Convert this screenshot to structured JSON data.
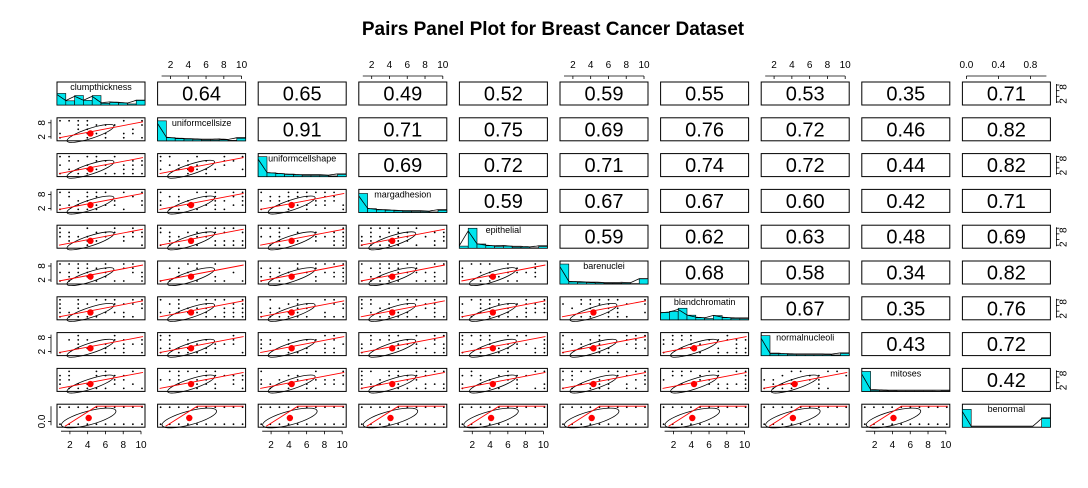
{
  "chart_data": {
    "type": "pairs",
    "title": "Pairs Panel Plot for Breast Cancer Dataset",
    "variables": [
      "clumpthickness",
      "uniformcellsize",
      "uniformcellshape",
      "margadhesion",
      "epithelial",
      "barenuclei",
      "blandchromatin",
      "normalnucleoli",
      "mitoses",
      "benormal"
    ],
    "correlations": [
      [
        null,
        0.64,
        0.65,
        0.49,
        0.52,
        0.59,
        0.55,
        0.53,
        0.35,
        0.71
      ],
      [
        null,
        null,
        0.91,
        0.71,
        0.75,
        0.69,
        0.76,
        0.72,
        0.46,
        0.82
      ],
      [
        null,
        null,
        null,
        0.69,
        0.72,
        0.71,
        0.74,
        0.72,
        0.44,
        0.82
      ],
      [
        null,
        null,
        null,
        null,
        0.59,
        0.67,
        0.67,
        0.6,
        0.42,
        0.71
      ],
      [
        null,
        null,
        null,
        null,
        null,
        0.59,
        0.62,
        0.63,
        0.48,
        0.69
      ],
      [
        null,
        null,
        null,
        null,
        null,
        null,
        0.68,
        0.58,
        0.34,
        0.82
      ],
      [
        null,
        null,
        null,
        null,
        null,
        null,
        null,
        0.67,
        0.35,
        0.76
      ],
      [
        null,
        null,
        null,
        null,
        null,
        null,
        null,
        null,
        0.43,
        0.72
      ],
      [
        null,
        null,
        null,
        null,
        null,
        null,
        null,
        null,
        null,
        0.42
      ],
      [
        null,
        null,
        null,
        null,
        null,
        null,
        null,
        null,
        null,
        null
      ]
    ],
    "correlation_labels": [
      [
        null,
        "0.64",
        "0.65",
        "0.49",
        "0.52",
        "0.59",
        "0.55",
        "0.53",
        "0.35",
        "0.71"
      ],
      [
        null,
        null,
        "0.91",
        "0.71",
        "0.75",
        "0.69",
        "0.76",
        "0.72",
        "0.46",
        "0.82"
      ],
      [
        null,
        null,
        null,
        "0.69",
        "0.72",
        "0.71",
        "0.74",
        "0.72",
        "0.44",
        "0.82"
      ],
      [
        null,
        null,
        null,
        null,
        "0.59",
        "0.67",
        "0.67",
        "0.60",
        "0.42",
        "0.71"
      ],
      [
        null,
        null,
        null,
        null,
        null,
        "0.59",
        "0.62",
        "0.63",
        "0.48",
        "0.69"
      ],
      [
        null,
        null,
        null,
        null,
        null,
        null,
        "0.68",
        "0.58",
        "0.34",
        "0.82"
      ],
      [
        null,
        null,
        null,
        null,
        null,
        null,
        null,
        "0.67",
        "0.35",
        "0.76"
      ],
      [
        null,
        null,
        null,
        null,
        null,
        null,
        null,
        null,
        "0.43",
        "0.72"
      ],
      [
        null,
        null,
        null,
        null,
        null,
        null,
        null,
        null,
        null,
        "0.42"
      ],
      [
        null,
        null,
        null,
        null,
        null,
        null,
        null,
        null,
        null,
        null
      ]
    ],
    "histograms": [
      [
        0.55,
        0.2,
        0.45,
        0.22,
        0.45,
        0.08,
        0.12,
        0.1,
        0.05,
        0.22
      ],
      [
        0.95,
        0.15,
        0.1,
        0.08,
        0.06,
        0.04,
        0.04,
        0.05,
        0.02,
        0.12
      ],
      [
        0.95,
        0.18,
        0.14,
        0.1,
        0.08,
        0.05,
        0.05,
        0.05,
        0.03,
        0.1
      ],
      [
        0.9,
        0.18,
        0.12,
        0.1,
        0.07,
        0.05,
        0.04,
        0.04,
        0.02,
        0.1
      ],
      [
        0.1,
        0.95,
        0.2,
        0.12,
        0.08,
        0.1,
        0.05,
        0.05,
        0.02,
        0.08
      ],
      [
        0.95,
        0.1,
        0.08,
        0.06,
        0.05,
        0.03,
        0.03,
        0.04,
        0.02,
        0.25
      ],
      [
        0.35,
        0.4,
        0.55,
        0.22,
        0.1,
        0.06,
        0.2,
        0.1,
        0.06,
        0.05
      ],
      [
        0.95,
        0.08,
        0.08,
        0.05,
        0.04,
        0.04,
        0.04,
        0.04,
        0.03,
        0.1
      ],
      [
        0.95,
        0.05,
        0.03,
        0.02,
        0.01,
        0.01,
        0.01,
        0.01,
        0.01,
        0.02
      ],
      [
        0.85,
        0.0,
        0.0,
        0.0,
        0.0,
        0.0,
        0.0,
        0.0,
        0.0,
        0.45
      ]
    ],
    "tick_labels_1_10": [
      "2",
      "4",
      "6",
      "8",
      "10"
    ],
    "tick_labels_0_1": [
      "0.0",
      "0.4",
      "0.8"
    ],
    "tick_labels_side_1_10": [
      "2",
      "8"
    ],
    "tick_labels_side_0_1": [
      "0.0"
    ],
    "x_range_1_10": [
      1,
      10
    ],
    "x_range_0_1": [
      0,
      1
    ],
    "colors": {
      "hist": "#00e5ee",
      "loess": "#ff0000",
      "mean_point": "#ff0000",
      "ellipse": "#000000",
      "points": "#000000"
    }
  }
}
